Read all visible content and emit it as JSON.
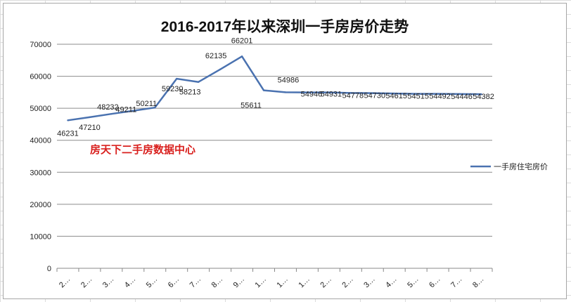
{
  "chart_data": {
    "type": "line",
    "title": "2016-2017年以来深圳一手房房价走势",
    "watermark": "房天下二手房数据中心",
    "xlabel": "",
    "ylabel": "",
    "ylim": [
      0,
      70000
    ],
    "yticks": [
      "0",
      "10000",
      "20000",
      "30000",
      "40000",
      "50000",
      "60000",
      "70000"
    ],
    "grid": true,
    "legend": "right",
    "categories": [
      "2…",
      "2…",
      "3…",
      "4…",
      "5…",
      "6…",
      "7…",
      "8…",
      "9…",
      "1…",
      "1…",
      "1…",
      "2…",
      "2…",
      "3…",
      "4…",
      "5…",
      "6…",
      "7…",
      "8…"
    ],
    "series": [
      {
        "name": "一手房住宅房价",
        "color": "#4a72b0",
        "values": [
          46231,
          47210,
          48232,
          49211,
          50211,
          59230,
          58213,
          62135,
          66201,
          55611,
          54986,
          54946,
          54931,
          54778,
          54730,
          54615,
          54515,
          54492,
          54446,
          54382
        ],
        "labels": [
          "46231",
          "47210",
          "48232",
          "49211",
          "50211",
          "59230",
          "58213",
          "62135",
          "66201",
          "55611",
          "54986",
          "54946",
          "54931",
          "54778",
          "54730",
          "54615",
          "54515",
          "54492",
          "54446",
          "54382"
        ]
      }
    ]
  }
}
